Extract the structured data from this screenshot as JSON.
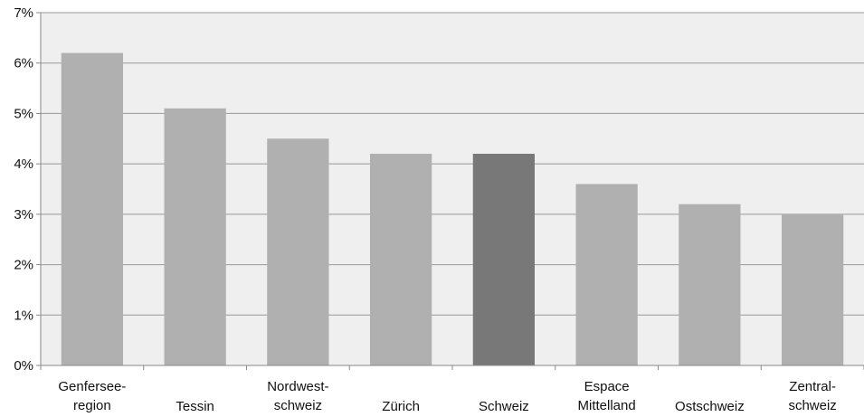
{
  "chart_data": {
    "type": "bar",
    "categories": [
      [
        "Genfersee-",
        "region"
      ],
      [
        "Tessin"
      ],
      [
        "Nordwest-",
        "schweiz"
      ],
      [
        "Zürich"
      ],
      [
        "Schweiz"
      ],
      [
        "Espace",
        "Mittelland"
      ],
      [
        "Ostschweiz"
      ],
      [
        "Zentral-",
        "schweiz"
      ]
    ],
    "values": [
      6.2,
      5.1,
      4.5,
      4.2,
      4.2,
      3.6,
      3.2,
      3.0
    ],
    "ylim": [
      0,
      7
    ],
    "yticks": [
      0,
      1,
      2,
      3,
      4,
      5,
      6,
      7
    ],
    "ytick_labels": [
      "0%",
      "1%",
      "2%",
      "3%",
      "4%",
      "5%",
      "6%",
      "7%"
    ],
    "highlight_index": 4,
    "grid": true,
    "colors": {
      "plot_background": "#efefef",
      "bar": "#b0b0b0",
      "bar_highlight": "#787878",
      "gridline": "#999999",
      "axis": "#888888"
    }
  }
}
